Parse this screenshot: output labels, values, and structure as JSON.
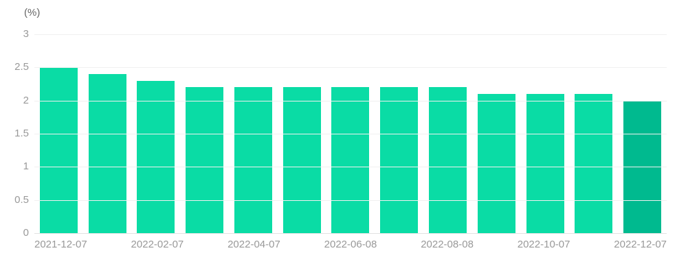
{
  "chart_data": {
    "type": "bar",
    "title": "",
    "unit_label": "(%)",
    "categories": [
      "2021-12-07",
      "",
      "2022-02-07",
      "",
      "2022-04-07",
      "",
      "2022-06-08",
      "",
      "2022-08-08",
      "",
      "2022-10-07",
      "",
      "2022-12-07"
    ],
    "values": [
      2.5,
      2.4,
      2.3,
      2.2,
      2.2,
      2.2,
      2.2,
      2.2,
      2.2,
      2.1,
      2.1,
      2.1,
      2.0
    ],
    "x_tick_labels": [
      "2021-12-07",
      "2022-02-07",
      "2022-04-07",
      "2022-06-08",
      "2022-08-08",
      "2022-10-07",
      "2022-12-07"
    ],
    "x_label_interval": 2,
    "y_tick_labels": [
      "3",
      "2.5",
      "2",
      "1.5",
      "1",
      "0.5",
      "0"
    ],
    "ylim": [
      0,
      3
    ],
    "grid": true,
    "legend_position": "none",
    "bar_color": "#0adca5",
    "highlight_color": "#00ba8f",
    "highlight_index": 12,
    "gridline_color": "#f0f0f0",
    "axis_line_color": "#e2e2e2",
    "tick_label_color": "#999999"
  }
}
